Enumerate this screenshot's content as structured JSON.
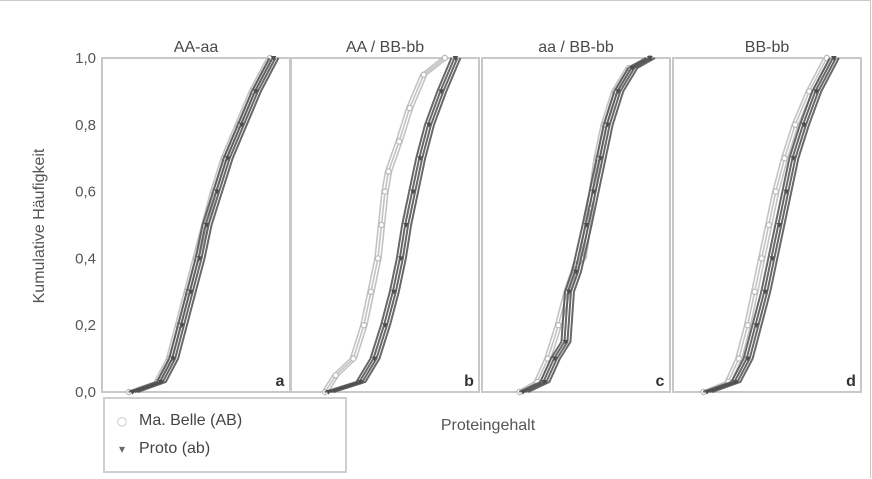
{
  "colors": {
    "background": "#ffffff",
    "panel_border": "#c8c8c8",
    "series_ma_belle": "#b8b8b8",
    "series_proto": "#4d4d4d",
    "text": "#555555"
  },
  "legend": {
    "items": [
      {
        "label": "Ma. Belle (AB)",
        "marker": "○",
        "color": "#b8b8b8"
      },
      {
        "label": "Proto (ab)",
        "marker": "▾",
        "color": "#6a6a6a"
      }
    ]
  },
  "chart_data": {
    "type": "line",
    "subtype": "cumulative-distribution (ECDF) panels",
    "ylabel": "Kumulative Häufigkeit",
    "xlabel": "Proteingehalt",
    "ylim": [
      0.0,
      1.0
    ],
    "yticks": [
      "0,0",
      "0,2",
      "0,4",
      "0,6",
      "0,8",
      "1,0"
    ],
    "grid": false,
    "legend_position": "bottom-left",
    "series_names": [
      "Ma. Belle (AB)",
      "Proto (ab)"
    ],
    "panels": [
      {
        "title": "AA-aa",
        "letter": "a",
        "xlim": [
          0,
          1
        ],
        "series": [
          {
            "name": "Ma. Belle (AB)",
            "x": [
              0.12,
              0.28,
              0.35,
              0.4,
              0.45,
              0.5,
              0.55,
              0.6,
              0.66,
              0.74,
              0.82,
              0.92
            ],
            "y": [
              0.0,
              0.03,
              0.1,
              0.2,
              0.3,
              0.4,
              0.5,
              0.6,
              0.7,
              0.8,
              0.9,
              1.0
            ]
          },
          {
            "name": "Proto (ab)",
            "x": [
              0.14,
              0.3,
              0.37,
              0.42,
              0.47,
              0.52,
              0.56,
              0.62,
              0.68,
              0.76,
              0.84,
              0.94
            ],
            "y": [
              0.0,
              0.03,
              0.1,
              0.2,
              0.3,
              0.4,
              0.5,
              0.6,
              0.7,
              0.8,
              0.9,
              1.0
            ]
          }
        ]
      },
      {
        "title": "AA / BB-bb",
        "letter": "b",
        "xlim": [
          0,
          1
        ],
        "series": [
          {
            "name": "Ma. Belle (AB)",
            "x": [
              0.16,
              0.22,
              0.32,
              0.38,
              0.42,
              0.46,
              0.48,
              0.5,
              0.52,
              0.58,
              0.64,
              0.72,
              0.84
            ],
            "y": [
              0.0,
              0.05,
              0.1,
              0.2,
              0.3,
              0.4,
              0.5,
              0.6,
              0.66,
              0.75,
              0.85,
              0.95,
              1.0
            ]
          },
          {
            "name": "Proto (ab)",
            "x": [
              0.18,
              0.36,
              0.44,
              0.5,
              0.55,
              0.59,
              0.62,
              0.66,
              0.7,
              0.75,
              0.82,
              0.9
            ],
            "y": [
              0.0,
              0.03,
              0.1,
              0.2,
              0.3,
              0.4,
              0.5,
              0.6,
              0.7,
              0.8,
              0.9,
              1.0
            ]
          }
        ]
      },
      {
        "title": "aa / BB-bb",
        "letter": "c",
        "xlim": [
          0,
          1
        ],
        "series": [
          {
            "name": "Ma. Belle (AB)",
            "x": [
              0.18,
              0.28,
              0.34,
              0.4,
              0.45,
              0.5,
              0.54,
              0.58,
              0.62,
              0.66,
              0.72,
              0.8,
              0.92
            ],
            "y": [
              0.0,
              0.03,
              0.1,
              0.2,
              0.3,
              0.38,
              0.4,
              0.55,
              0.7,
              0.8,
              0.9,
              0.97,
              1.0
            ]
          },
          {
            "name": "Proto (ab)",
            "x": [
              0.2,
              0.32,
              0.38,
              0.44,
              0.46,
              0.5,
              0.56,
              0.6,
              0.64,
              0.68,
              0.74,
              0.82,
              0.92
            ],
            "y": [
              0.0,
              0.03,
              0.1,
              0.15,
              0.3,
              0.36,
              0.5,
              0.6,
              0.7,
              0.8,
              0.9,
              0.97,
              1.0
            ]
          }
        ]
      },
      {
        "title": "BB-bb",
        "letter": "d",
        "xlim": [
          0,
          1
        ],
        "series": [
          {
            "name": "Ma. Belle (AB)",
            "x": [
              0.14,
              0.28,
              0.34,
              0.39,
              0.43,
              0.47,
              0.51,
              0.55,
              0.6,
              0.66,
              0.74,
              0.84
            ],
            "y": [
              0.0,
              0.03,
              0.1,
              0.2,
              0.3,
              0.4,
              0.5,
              0.6,
              0.7,
              0.8,
              0.9,
              1.0
            ]
          },
          {
            "name": "Proto (ab)",
            "x": [
              0.16,
              0.32,
              0.39,
              0.44,
              0.49,
              0.53,
              0.57,
              0.61,
              0.65,
              0.71,
              0.78,
              0.88
            ],
            "y": [
              0.0,
              0.03,
              0.1,
              0.2,
              0.3,
              0.4,
              0.5,
              0.6,
              0.7,
              0.8,
              0.9,
              1.0
            ]
          }
        ]
      }
    ]
  }
}
